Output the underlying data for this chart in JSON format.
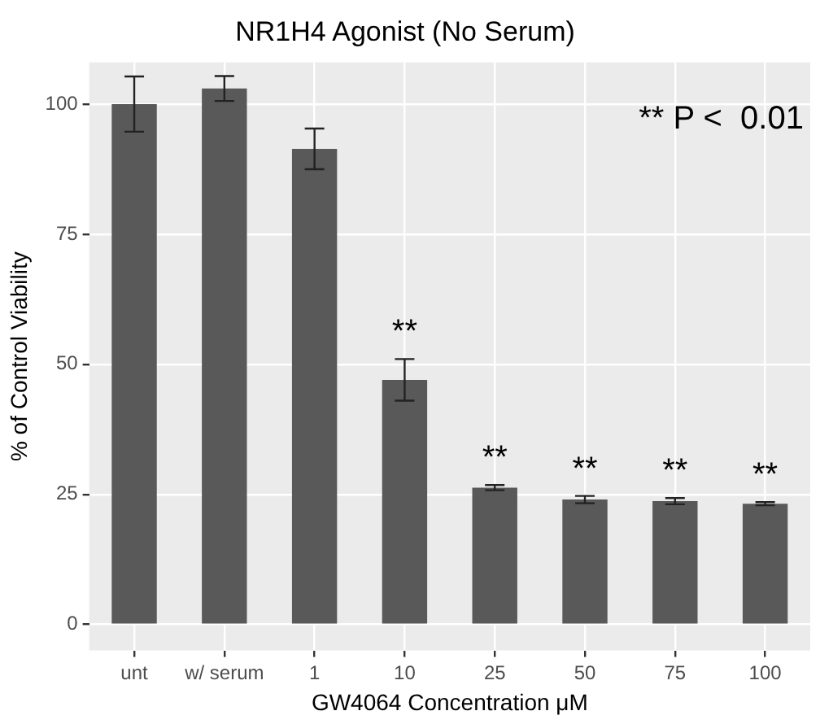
{
  "chart_data": {
    "type": "bar",
    "title": "NR1H4 Agonist (No Serum)",
    "xlabel": "GW4064 Concentration μM",
    "ylabel": "% of Control Viability",
    "categories": [
      "unt",
      "w/ serum",
      "1",
      "10",
      "25",
      "50",
      "75",
      "100"
    ],
    "values": [
      100,
      103,
      91.4,
      47,
      26.3,
      24,
      23.7,
      23.2
    ],
    "errors": [
      5.3,
      2.4,
      3.9,
      4,
      0.5,
      0.7,
      0.6,
      0.3
    ],
    "color": "#595959",
    "ylim": [
      -5,
      108
    ],
    "yticks": [
      0,
      25,
      50,
      75,
      100
    ],
    "grid": true,
    "annotations": [
      "**",
      "**",
      "**",
      "**",
      "**",
      "** P <  0.01"
    ]
  }
}
